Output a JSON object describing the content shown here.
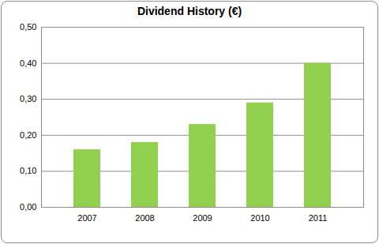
{
  "chart_data": {
    "type": "bar",
    "title": "Dividend History (€)",
    "categories": [
      "2007",
      "2008",
      "2009",
      "2010",
      "2011"
    ],
    "values": [
      0.16,
      0.18,
      0.23,
      0.29,
      0.4
    ],
    "color": "#92d050",
    "ylim": [
      0,
      0.5
    ],
    "yticks": [
      {
        "value": 0,
        "label": "0,00"
      },
      {
        "value": 0.1,
        "label": "0,10"
      },
      {
        "value": 0.2,
        "label": "0,20"
      },
      {
        "value": 0.3,
        "label": "0,30"
      },
      {
        "value": 0.4,
        "label": "0,40"
      },
      {
        "value": 0.5,
        "label": "0,50"
      }
    ],
    "grid": true
  }
}
